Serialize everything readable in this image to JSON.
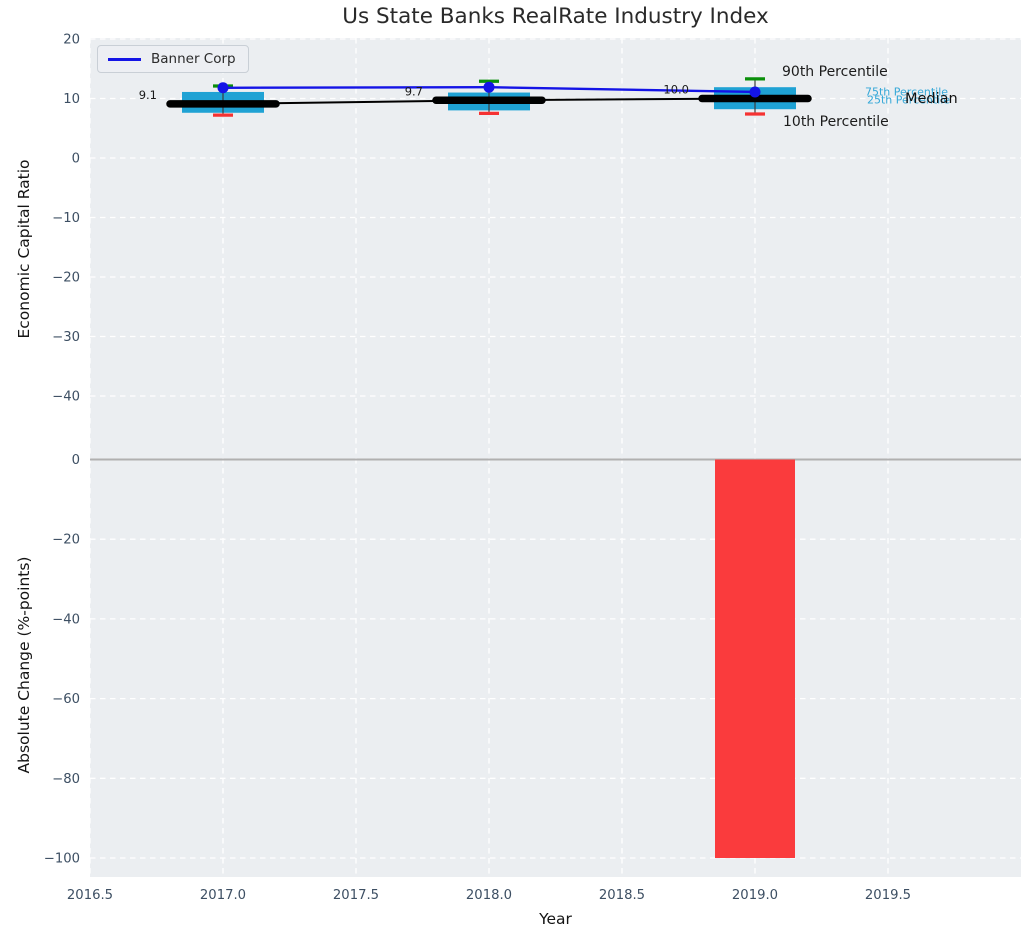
{
  "title": "Us State Banks RealRate Industry Index",
  "legend": {
    "series_label": "Banner Corp"
  },
  "axes": {
    "xlabel": "Year",
    "top_ylabel": "Economic Capital Ratio",
    "bottom_ylabel": "Absolute Change (%-points)"
  },
  "annotations": {
    "p90": "90th Percentile",
    "p75": "75th Percentile",
    "p25": "25th Percentile",
    "median": "Median",
    "p10": "10th Percentile"
  },
  "colors": {
    "banner_line": "#1414e6",
    "box_fill": "#1fa2d4",
    "p90_cap": "#0a8f0a",
    "p10_cap": "#f53232",
    "bar_negative": "#fa3b3d",
    "median_line": "#000000",
    "whisker": "#3c3c3c",
    "zero_line": "#b0b0b0",
    "axes_bg": "#ebeef1",
    "grid": "#ffffff",
    "tick_label": "#3d4f63",
    "value_label": "#1a1a1a",
    "percentile_label_cyan": "#35a8d8"
  },
  "chart_data": [
    {
      "type": "box",
      "title": "Us State Banks RealRate Industry Index",
      "ylabel": "Economic Capital Ratio",
      "xlim": [
        2016.5,
        2020.0
      ],
      "ylim": [
        -50,
        20.3
      ],
      "grid": true,
      "legend_position": "upper left",
      "xticks": [
        2016.5,
        2017.0,
        2017.5,
        2018.0,
        2018.5,
        2019.0,
        2019.5
      ],
      "yticks": [
        20,
        10,
        0,
        -10,
        -20,
        -30,
        -40
      ],
      "x": [
        2017,
        2018,
        2019
      ],
      "boxes": [
        {
          "year": 2017,
          "p10": 7.2,
          "p25": 7.6,
          "median": 9.1,
          "p75": 11.1,
          "p90": 12.1
        },
        {
          "year": 2018,
          "p10": 7.5,
          "p25": 8.0,
          "median": 9.7,
          "p75": 11.0,
          "p90": 12.9
        },
        {
          "year": 2019,
          "p10": 7.4,
          "p25": 8.2,
          "median": 10.0,
          "p75": 11.9,
          "p90": 13.3
        }
      ],
      "median_values": [
        9.1,
        9.7,
        10.0
      ],
      "median_labels": [
        "9.1",
        "9.7",
        "10.0"
      ],
      "series": [
        {
          "name": "Banner Corp",
          "values": [
            11.8,
            11.9,
            11.1
          ]
        }
      ]
    },
    {
      "type": "bar",
      "ylabel": "Absolute Change (%-points)",
      "xlabel": "Year",
      "xlim": [
        2016.5,
        2020.0
      ],
      "ylim": [
        -105,
        1.5
      ],
      "grid": true,
      "zero_line": true,
      "yticks": [
        0,
        -20,
        -40,
        -60,
        -80,
        -100
      ],
      "x": [
        2019
      ],
      "values": [
        -100
      ]
    }
  ]
}
